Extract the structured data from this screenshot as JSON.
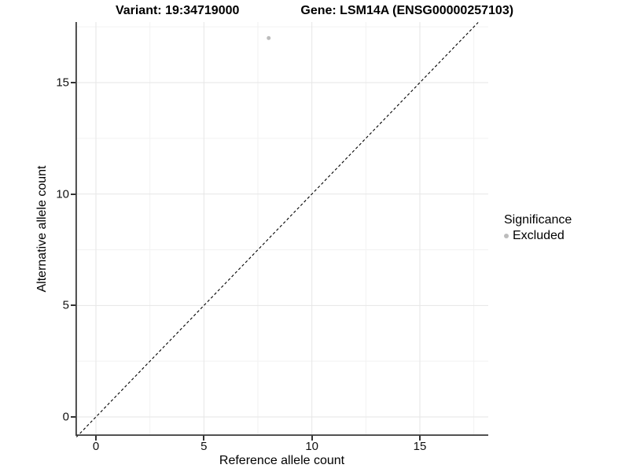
{
  "chart_data": {
    "type": "scatter",
    "title_left": "Variant: 19:34719000",
    "title_right": "Gene: LSM14A (ENSG00000257103)",
    "xlabel": "Reference allele count",
    "ylabel": "Alternative allele count",
    "x_ticks": [
      0,
      5,
      10,
      15
    ],
    "y_ticks": [
      0,
      5,
      10,
      15
    ],
    "x_minor_gridlines": [
      2.5,
      7.5,
      12.5,
      17.5
    ],
    "y_minor_gridlines": [
      2.5,
      7.5,
      12.5,
      17.5
    ],
    "xlim": [
      -0.9,
      18.2
    ],
    "ylim": [
      -0.9,
      17.7
    ],
    "grid": true,
    "series": [
      {
        "name": "Excluded",
        "color": "#bcbcbc",
        "points": [
          {
            "x": 8,
            "y": 17
          }
        ]
      }
    ],
    "reference_line": {
      "type": "identity",
      "style": "dashed",
      "color": "#000000"
    },
    "legend": {
      "title": "Significance",
      "position": "right",
      "entries": [
        {
          "label": "Excluded",
          "color": "#bcbcbc"
        }
      ]
    }
  },
  "colors": {
    "background": "#ffffff",
    "grid_major": "#e6e6e6",
    "grid_minor": "#f2f2f2",
    "axis_line": "#3c3c3c",
    "point": "#bcbcbc",
    "text": "#000000"
  }
}
